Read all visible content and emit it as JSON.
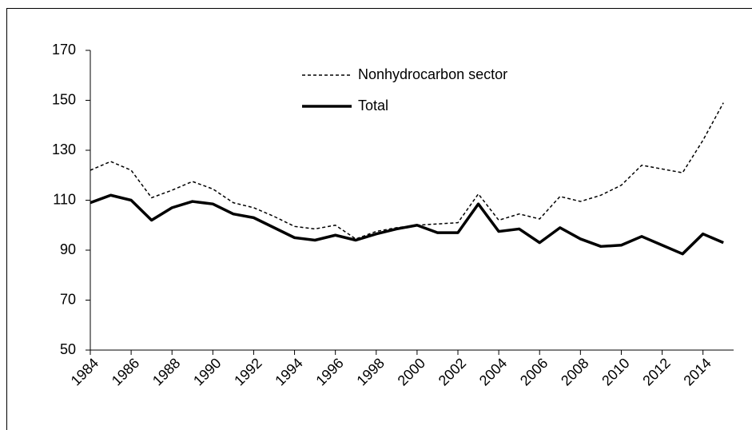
{
  "chart_data": {
    "type": "line",
    "x": [
      1984,
      1985,
      1986,
      1987,
      1988,
      1989,
      1990,
      1991,
      1992,
      1993,
      1994,
      1995,
      1996,
      1997,
      1998,
      1999,
      2000,
      2001,
      2002,
      2003,
      2004,
      2005,
      2006,
      2007,
      2008,
      2009,
      2010,
      2011,
      2012,
      2013,
      2014,
      2015
    ],
    "series": [
      {
        "name": "Nonhydrocarbon sector",
        "color": "#000000",
        "dash": true,
        "values": [
          122,
          125.5,
          122,
          111,
          114,
          117.5,
          114.5,
          109,
          107,
          103.5,
          99.5,
          98.5,
          100,
          94.5,
          97.5,
          99,
          100,
          100.5,
          101,
          112.5,
          102,
          104.5,
          102.5,
          111.5,
          109.5,
          112,
          116,
          124,
          122.5,
          121,
          134,
          149
        ]
      },
      {
        "name": "Total",
        "color": "#000000",
        "dash": false,
        "values": [
          109,
          112,
          110,
          102,
          107,
          109.5,
          108.5,
          104.5,
          103,
          99,
          95,
          94,
          96,
          94,
          96.5,
          98.5,
          100,
          97,
          97,
          108.5,
          97.5,
          98.5,
          93,
          99,
          94.5,
          91.5,
          92,
          95.5,
          92,
          88.5,
          96.5,
          93
        ]
      }
    ],
    "xlim": [
      1984,
      2015.5
    ],
    "xticks": [
      1984,
      1986,
      1988,
      1990,
      1992,
      1994,
      1996,
      1998,
      2000,
      2002,
      2004,
      2006,
      2008,
      2010,
      2012,
      2014
    ],
    "ylim": [
      50,
      170
    ],
    "yticks": [
      50,
      70,
      90,
      110,
      130,
      150,
      170
    ]
  }
}
